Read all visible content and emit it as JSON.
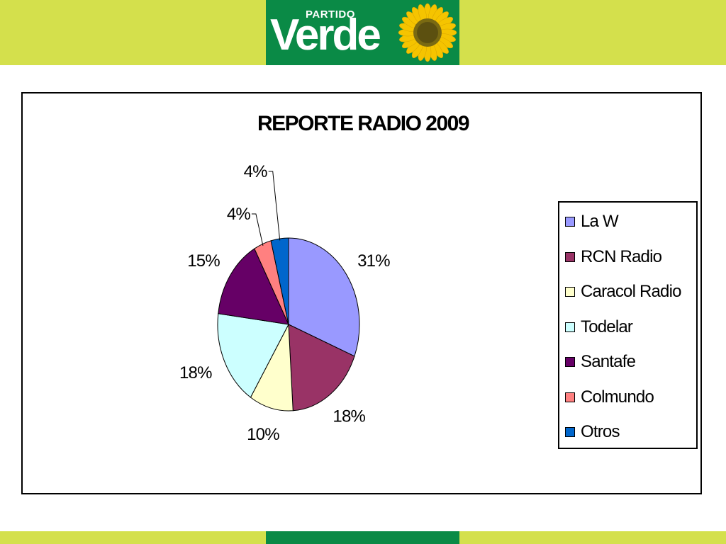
{
  "header": {
    "logo_small": "PARTIDO",
    "logo_large": "Verde",
    "colors": {
      "band": "#d4e04c",
      "logo_bg": "#0a8a46",
      "sunflower": "#f5c400"
    }
  },
  "chart_data": {
    "type": "pie",
    "title": "REPORTE RADIO 2009",
    "legend_position": "right",
    "categories": [
      "La W",
      "RCN Radio",
      "Caracol Radio",
      "Todelar",
      "Santafe",
      "Colmundo",
      "Otros"
    ],
    "values": [
      31,
      18,
      10,
      18,
      15,
      4,
      4
    ],
    "labels": [
      "31%",
      "18%",
      "10%",
      "18%",
      "15%",
      "4%",
      "4%"
    ],
    "colors": [
      "#9999ff",
      "#993366",
      "#ffffcc",
      "#ccffff",
      "#660066",
      "#ff8080",
      "#0066cc"
    ]
  }
}
